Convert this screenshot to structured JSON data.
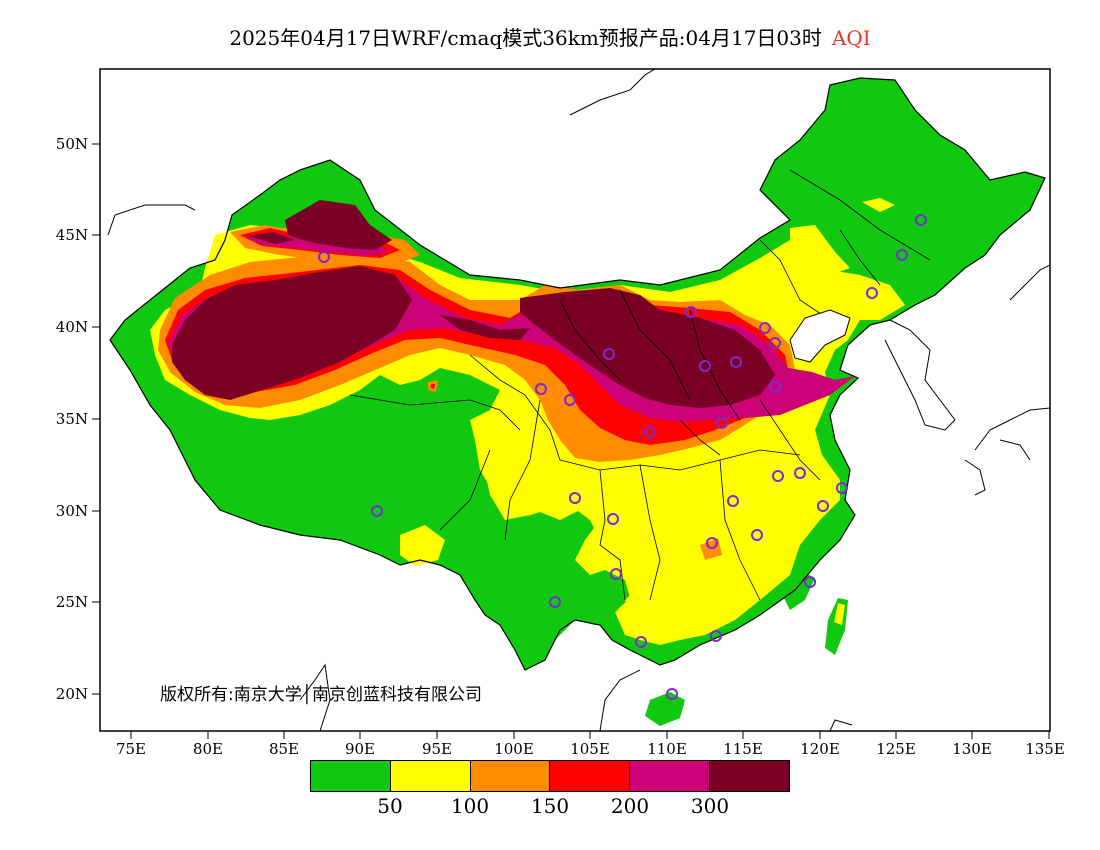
{
  "title": "2025年04月17日WRF/cmaq模式36km预报产品:04月17日03时",
  "title_suffix": "AQI",
  "lat_labels": [
    "20N",
    "25N",
    "30N",
    "35N",
    "40N",
    "45N",
    "50N"
  ],
  "lon_labels": [
    "75E",
    "80E",
    "85E",
    "90E",
    "95E",
    "100E",
    "105E",
    "110E",
    "115E",
    "120E",
    "125E",
    "130E",
    "135E"
  ],
  "copyright": "版权所有:南京大学│南京创蓝科技有限公司",
  "legend": {
    "colors": [
      "#10c810",
      "#ffff00",
      "#ff8c00",
      "#ff0000",
      "#cc0077",
      "#7a0025"
    ],
    "labels": [
      "50",
      "100",
      "150",
      "200",
      "300"
    ]
  },
  "aqi_levels": [
    "0-50",
    "50-100",
    "100-150",
    "150-200",
    "200-300",
    ">300"
  ],
  "styles": {
    "ocean": "#ffffff",
    "border": "#000000",
    "station_marker": "#7a2bd1"
  }
}
